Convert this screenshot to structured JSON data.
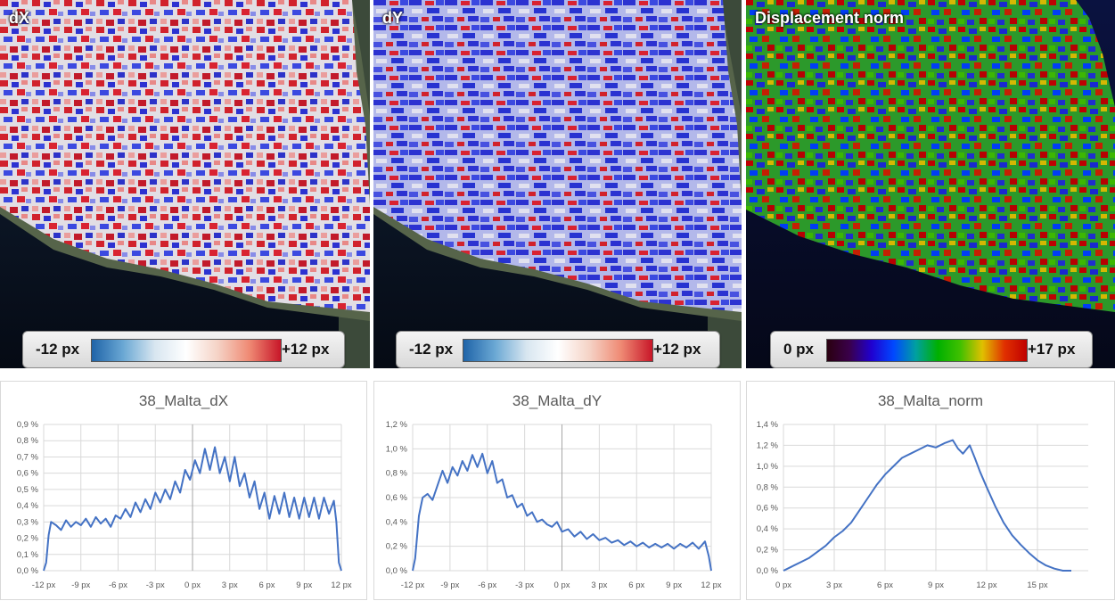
{
  "panels": [
    {
      "title": "dX",
      "legend_min": "-12 px",
      "legend_max": "+12 px",
      "scheme": "diverging"
    },
    {
      "title": "dY",
      "legend_min": "-12 px",
      "legend_max": "+12 px",
      "scheme": "diverging"
    },
    {
      "title": "Displacement norm",
      "legend_min": "0 px",
      "legend_max": "+17 px",
      "scheme": "rainbow"
    }
  ],
  "colors": {
    "line": "#4472c4",
    "grid": "#d9d9d9",
    "sea": "#0b1424",
    "red": "#d71f2a",
    "blue": "#2a2fd8"
  },
  "chart_data": [
    {
      "type": "line",
      "title": "38_Malta_dX",
      "xlim": [
        -12,
        12
      ],
      "ylim": [
        0,
        0.9
      ],
      "xticks": [
        -12,
        -9,
        -6,
        -3,
        0,
        3,
        6,
        9,
        12
      ],
      "xtick_labels": [
        "-12 px",
        "-9 px",
        "-6 px",
        "-3 px",
        "0 px",
        "3 px",
        "6 px",
        "9 px",
        "12 px"
      ],
      "yticks": [
        0,
        0.1,
        0.2,
        0.3,
        0.4,
        0.5,
        0.6,
        0.7,
        0.8,
        0.9
      ],
      "ytick_labels": [
        "0,0 %",
        "0,1 %",
        "0,2 %",
        "0,3 %",
        "0,4 %",
        "0,5 %",
        "0,6 %",
        "0,7 %",
        "0,8 %",
        "0,9 %"
      ],
      "series": [
        {
          "x": [
            -12,
            -11.8,
            -11.6,
            -11.4,
            -11,
            -10.6,
            -10.2,
            -9.8,
            -9.4,
            -9,
            -8.6,
            -8.2,
            -7.8,
            -7.4,
            -7,
            -6.6,
            -6.2,
            -5.8,
            -5.4,
            -5,
            -4.6,
            -4.2,
            -3.8,
            -3.4,
            -3,
            -2.6,
            -2.2,
            -1.8,
            -1.4,
            -1,
            -0.6,
            -0.2,
            0.2,
            0.6,
            1,
            1.4,
            1.8,
            2.2,
            2.6,
            3,
            3.4,
            3.8,
            4.2,
            4.6,
            5,
            5.4,
            5.8,
            6.2,
            6.6,
            7,
            7.4,
            7.8,
            8.2,
            8.6,
            9,
            9.4,
            9.8,
            10.2,
            10.6,
            11,
            11.4,
            11.6,
            11.8,
            12
          ],
          "y": [
            0.0,
            0.05,
            0.22,
            0.3,
            0.28,
            0.25,
            0.31,
            0.27,
            0.3,
            0.28,
            0.32,
            0.27,
            0.33,
            0.29,
            0.32,
            0.27,
            0.34,
            0.32,
            0.38,
            0.33,
            0.42,
            0.36,
            0.44,
            0.38,
            0.48,
            0.42,
            0.5,
            0.44,
            0.55,
            0.48,
            0.62,
            0.56,
            0.68,
            0.6,
            0.75,
            0.62,
            0.76,
            0.6,
            0.7,
            0.55,
            0.7,
            0.52,
            0.6,
            0.45,
            0.55,
            0.38,
            0.48,
            0.32,
            0.46,
            0.35,
            0.48,
            0.33,
            0.45,
            0.32,
            0.45,
            0.33,
            0.45,
            0.32,
            0.45,
            0.35,
            0.43,
            0.3,
            0.05,
            0.0
          ]
        }
      ]
    },
    {
      "type": "line",
      "title": "38_Malta_dY",
      "xlim": [
        -12,
        12
      ],
      "ylim": [
        0,
        1.2
      ],
      "xticks": [
        -12,
        -9,
        -6,
        -3,
        0,
        3,
        6,
        9,
        12
      ],
      "xtick_labels": [
        "-12 px",
        "-9 px",
        "-6 px",
        "-3 px",
        "0 px",
        "3 px",
        "6 px",
        "9 px",
        "12 px"
      ],
      "yticks": [
        0,
        0.2,
        0.4,
        0.6,
        0.8,
        1.0,
        1.2
      ],
      "ytick_labels": [
        "0,0 %",
        "0,2 %",
        "0,4 %",
        "0,6 %",
        "0,8 %",
        "1,0 %",
        "1,2 %"
      ],
      "series": [
        {
          "x": [
            -12,
            -11.8,
            -11.5,
            -11.2,
            -10.8,
            -10.4,
            -10,
            -9.6,
            -9.2,
            -8.8,
            -8.4,
            -8,
            -7.6,
            -7.2,
            -6.8,
            -6.4,
            -6,
            -5.6,
            -5.2,
            -4.8,
            -4.4,
            -4,
            -3.6,
            -3.2,
            -2.8,
            -2.4,
            -2,
            -1.6,
            -1.2,
            -0.8,
            -0.4,
            0,
            0.5,
            1,
            1.5,
            2,
            2.5,
            3,
            3.5,
            4,
            4.5,
            5,
            5.5,
            6,
            6.5,
            7,
            7.5,
            8,
            8.5,
            9,
            9.5,
            10,
            10.5,
            11,
            11.5,
            11.8,
            12
          ],
          "y": [
            0.0,
            0.1,
            0.45,
            0.6,
            0.63,
            0.58,
            0.7,
            0.82,
            0.72,
            0.85,
            0.78,
            0.9,
            0.82,
            0.95,
            0.85,
            0.96,
            0.8,
            0.9,
            0.72,
            0.75,
            0.6,
            0.62,
            0.52,
            0.55,
            0.45,
            0.48,
            0.4,
            0.42,
            0.38,
            0.36,
            0.4,
            0.32,
            0.34,
            0.28,
            0.32,
            0.26,
            0.3,
            0.25,
            0.27,
            0.23,
            0.25,
            0.21,
            0.24,
            0.2,
            0.23,
            0.19,
            0.22,
            0.19,
            0.22,
            0.18,
            0.22,
            0.19,
            0.23,
            0.18,
            0.24,
            0.12,
            0.0
          ]
        }
      ]
    },
    {
      "type": "line",
      "title": "38_Malta_norm",
      "xlim": [
        0,
        18
      ],
      "ylim": [
        0,
        1.4
      ],
      "xticks": [
        0,
        3,
        6,
        9,
        12,
        15
      ],
      "xtick_labels": [
        "0 px",
        "3 px",
        "6 px",
        "9 px",
        "12 px",
        "15 px"
      ],
      "yticks": [
        0,
        0.2,
        0.4,
        0.6,
        0.8,
        1.0,
        1.2,
        1.4
      ],
      "ytick_labels": [
        "0,0 %",
        "0,2 %",
        "0,4 %",
        "0,6 %",
        "0,8 %",
        "1,0 %",
        "1,2 %",
        "1,4 %"
      ],
      "series": [
        {
          "x": [
            0,
            0.5,
            1,
            1.5,
            2,
            2.5,
            3,
            3.5,
            4,
            4.5,
            5,
            5.5,
            6,
            6.5,
            7,
            7.5,
            8,
            8.5,
            9,
            9.5,
            10,
            10.3,
            10.6,
            11,
            11.3,
            11.6,
            12,
            12.5,
            13,
            13.5,
            14,
            14.5,
            15,
            15.5,
            16,
            16.5,
            17
          ],
          "y": [
            0.0,
            0.04,
            0.08,
            0.12,
            0.18,
            0.24,
            0.32,
            0.38,
            0.46,
            0.58,
            0.7,
            0.82,
            0.92,
            1.0,
            1.08,
            1.12,
            1.16,
            1.2,
            1.18,
            1.22,
            1.25,
            1.17,
            1.12,
            1.2,
            1.08,
            0.95,
            0.8,
            0.62,
            0.46,
            0.34,
            0.25,
            0.17,
            0.1,
            0.05,
            0.02,
            0.0,
            0.0
          ]
        }
      ]
    }
  ]
}
